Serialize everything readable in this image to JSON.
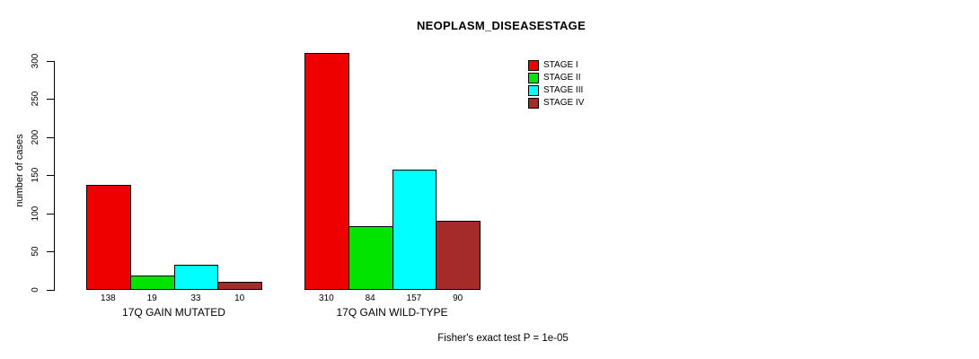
{
  "title": "NEOPLASM_DISEASESTAGE",
  "footer": "Fisher's exact test P = 1e-05",
  "chart_data": {
    "type": "bar",
    "title": "NEOPLASM_DISEASESTAGE",
    "xlabel": "",
    "ylabel": "number of cases",
    "ylim": [
      0,
      310
    ],
    "yticks": [
      0,
      50,
      100,
      150,
      200,
      250,
      300
    ],
    "grid": false,
    "legend_position": "top-right",
    "categories": [
      "17Q GAIN MUTATED",
      "17Q GAIN WILD-TYPE"
    ],
    "series": [
      {
        "name": "STAGE I",
        "color": "#ee0000",
        "values": [
          138,
          310
        ]
      },
      {
        "name": "STAGE II",
        "color": "#00e400",
        "values": [
          19,
          84
        ]
      },
      {
        "name": "STAGE III",
        "color": "#00ffff",
        "values": [
          33,
          157
        ]
      },
      {
        "name": "STAGE IV",
        "color": "#a52a2a",
        "values": [
          10,
          90
        ]
      }
    ],
    "annotation": "Fisher's exact test P = 1e-05"
  }
}
